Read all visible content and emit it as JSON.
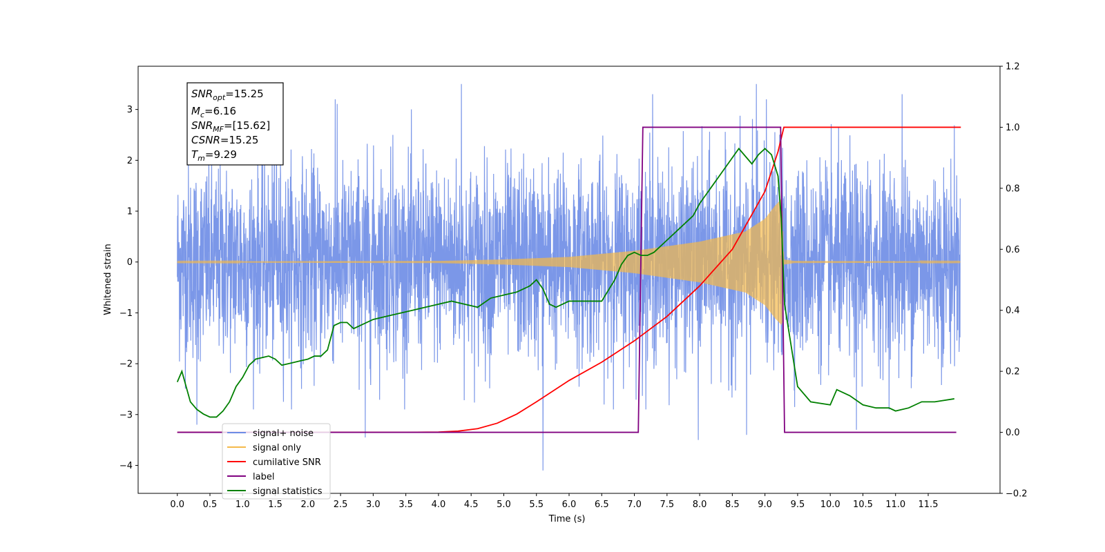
{
  "chart_data": {
    "type": "line",
    "xlabel": "Time (s)",
    "ylabel": "Whitened strain",
    "xlim": [
      -0.6,
      12.6
    ],
    "ylim": [
      -4.55,
      3.85
    ],
    "y2lim": [
      -0.2,
      1.2
    ],
    "x_ticks": [
      "0.0",
      "0.5",
      "1.0",
      "1.5",
      "2.0",
      "2.5",
      "3.0",
      "3.5",
      "4.0",
      "4.5",
      "5.0",
      "5.5",
      "6.0",
      "6.5",
      "7.0",
      "7.5",
      "8.0",
      "8.5",
      "9.0",
      "9.5",
      "10.0",
      "10.5",
      "11.0",
      "11.5"
    ],
    "y_ticks": [
      "−4",
      "−3",
      "−2",
      "−1",
      "0",
      "1",
      "2",
      "3"
    ],
    "y2_ticks": [
      "−0.2",
      "0.0",
      "0.2",
      "0.4",
      "0.6",
      "0.8",
      "1.0",
      "1.2"
    ],
    "grid": false,
    "legend_placement": "lower left",
    "annotation": [
      {
        "base": "SNR",
        "sub": "opt",
        "rest": "=15.25"
      },
      {
        "base": "M",
        "sub": "c",
        "rest": "=6.16"
      },
      {
        "base": "SNR",
        "sub": "MF",
        "rest": "=[15.62]"
      },
      {
        "base": "CSNR",
        "sub": "",
        "rest": "=15.25"
      },
      {
        "base": "T",
        "sub": "m",
        "rest": "=9.29"
      }
    ],
    "series": [
      {
        "name": "signal+ noise",
        "axis": "left",
        "color": "#6d8ce6",
        "x_range": [
          0,
          11.99
        ],
        "noise_std": 1.0,
        "peaks": [
          {
            "x": 4.35,
            "y": 3.5
          },
          {
            "x": 8.87,
            "y": 3.5
          },
          {
            "x": 2.42,
            "y": 3.2
          },
          {
            "x": 11.1,
            "y": 3.3
          },
          {
            "x": 7.28,
            "y": 3.3
          },
          {
            "x": 9.02,
            "y": 3.2
          },
          {
            "x": 1.52,
            "y": 3.1
          },
          {
            "x": 3.3,
            "y": 2.5
          },
          {
            "x": 5.6,
            "y": -4.1
          },
          {
            "x": 2.88,
            "y": -3.45
          },
          {
            "x": 7.98,
            "y": -3.5
          },
          {
            "x": 8.72,
            "y": -3.4
          },
          {
            "x": 10.4,
            "y": -3.3
          },
          {
            "x": 0.3,
            "y": -3.2
          }
        ]
      },
      {
        "name": "signal only",
        "axis": "left",
        "color": "#f5b94a",
        "x_range": [
          0,
          11.99
        ],
        "envelope": [
          [
            0,
            0.01
          ],
          [
            4.0,
            0.02
          ],
          [
            5.0,
            0.05
          ],
          [
            6.0,
            0.1
          ],
          [
            7.0,
            0.22
          ],
          [
            8.0,
            0.4
          ],
          [
            8.7,
            0.6
          ],
          [
            9.0,
            0.85
          ],
          [
            9.15,
            1.1
          ],
          [
            9.26,
            1.25
          ],
          [
            9.29,
            0.05
          ],
          [
            9.45,
            0.02
          ],
          [
            11.99,
            0.01
          ]
        ]
      },
      {
        "name": "cumilative SNR",
        "axis": "right",
        "color": "#ff0000",
        "x": [
          0,
          3.5,
          4.0,
          4.3,
          4.6,
          4.9,
          5.2,
          5.5,
          6.0,
          6.5,
          7.0,
          7.5,
          8.0,
          8.5,
          9.0,
          9.2,
          9.29,
          9.3,
          12.0
        ],
        "y": [
          0,
          0,
          0.001,
          0.004,
          0.012,
          0.03,
          0.06,
          0.1,
          0.17,
          0.23,
          0.3,
          0.38,
          0.48,
          0.6,
          0.79,
          0.92,
          1.0,
          1.0,
          1.0
        ]
      },
      {
        "name": "label",
        "axis": "right",
        "color": "#800080",
        "x": [
          0,
          7.06,
          7.13,
          9.24,
          9.3,
          11.93
        ],
        "y": [
          0,
          0,
          1,
          1,
          0,
          0
        ]
      },
      {
        "name": "signal statistics",
        "axis": "right",
        "color": "#008000",
        "x": [
          0,
          0.07,
          0.2,
          0.3,
          0.4,
          0.5,
          0.6,
          0.7,
          0.8,
          0.9,
          1.0,
          1.1,
          1.2,
          1.3,
          1.4,
          1.5,
          1.6,
          1.7,
          1.8,
          1.9,
          2.0,
          2.1,
          2.2,
          2.3,
          2.4,
          2.5,
          2.6,
          2.7,
          2.8,
          3.0,
          3.2,
          3.4,
          3.6,
          3.8,
          4.0,
          4.2,
          4.4,
          4.6,
          4.8,
          5.0,
          5.2,
          5.4,
          5.5,
          5.6,
          5.7,
          5.8,
          5.9,
          6.0,
          6.2,
          6.5,
          6.7,
          6.8,
          6.9,
          7.0,
          7.1,
          7.2,
          7.3,
          7.5,
          7.7,
          7.9,
          8.0,
          8.2,
          8.4,
          8.6,
          8.8,
          8.9,
          9.0,
          9.1,
          9.2,
          9.25,
          9.3,
          9.5,
          9.7,
          10.0,
          10.1,
          10.3,
          10.5,
          10.7,
          10.9,
          11.0,
          11.2,
          11.4,
          11.6,
          11.9
        ],
        "y": [
          0.165,
          0.2,
          0.1,
          0.075,
          0.06,
          0.05,
          0.05,
          0.07,
          0.1,
          0.15,
          0.18,
          0.22,
          0.24,
          0.245,
          0.25,
          0.24,
          0.22,
          0.225,
          0.23,
          0.235,
          0.24,
          0.25,
          0.25,
          0.27,
          0.35,
          0.36,
          0.36,
          0.34,
          0.35,
          0.37,
          0.38,
          0.39,
          0.4,
          0.41,
          0.42,
          0.43,
          0.42,
          0.41,
          0.44,
          0.45,
          0.46,
          0.48,
          0.5,
          0.47,
          0.42,
          0.41,
          0.42,
          0.43,
          0.43,
          0.43,
          0.5,
          0.55,
          0.58,
          0.59,
          0.58,
          0.58,
          0.59,
          0.63,
          0.67,
          0.71,
          0.75,
          0.81,
          0.87,
          0.93,
          0.88,
          0.91,
          0.93,
          0.91,
          0.84,
          0.7,
          0.42,
          0.15,
          0.1,
          0.09,
          0.14,
          0.12,
          0.09,
          0.08,
          0.08,
          0.07,
          0.08,
          0.1,
          0.1,
          0.11
        ]
      }
    ]
  }
}
